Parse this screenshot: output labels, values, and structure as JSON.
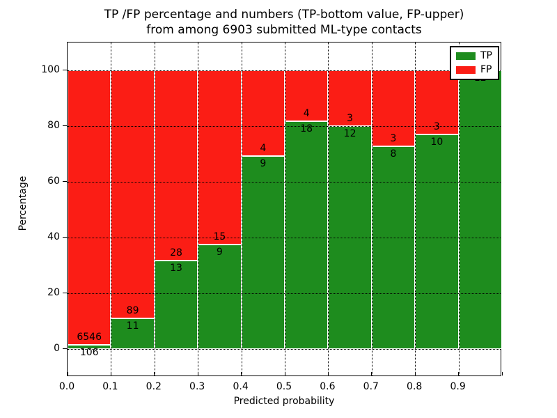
{
  "title": {
    "line1": "TP /FP percentage and numbers (TP-bottom value, FP-upper)",
    "line2": "from among 6903 submitted ML-type contacts"
  },
  "axes": {
    "xlabel": "Predicted probability",
    "ylabel": "Percentage",
    "x_tick_labels": [
      "0.0",
      "0.1",
      "0.2",
      "0.3",
      "0.4",
      "0.5",
      "0.6",
      "0.7",
      "0.8",
      "0.9"
    ],
    "y_tick_labels": [
      "0",
      "20",
      "40",
      "60",
      "80",
      "100"
    ],
    "y_tick_values": [
      0,
      20,
      40,
      60,
      80,
      100
    ]
  },
  "legend": {
    "items": [
      {
        "label": "TP",
        "color": "#1e8c1e"
      },
      {
        "label": "FP",
        "color": "#fb1d15"
      }
    ]
  },
  "colors": {
    "tp": "#1e8c1e",
    "fp": "#fb1d15",
    "grid": "#000000",
    "text": "#000000",
    "background": "#ffffff"
  },
  "chart_data": {
    "type": "bar",
    "stacked": true,
    "normalized": "each bin scaled to 100 percent; labels show raw counts (TP bottom, FP upper)",
    "title": "TP /FP percentage and numbers (TP-bottom value, FP-upper) from among 6903 submitted ML-type contacts",
    "xlabel": "Predicted probability",
    "ylabel": "Percentage",
    "xlim": [
      0.0,
      1.0
    ],
    "ylim": [
      -10,
      110
    ],
    "grid": true,
    "legend_position": "upper right",
    "bin_edges": [
      0.0,
      0.1,
      0.2,
      0.3,
      0.4,
      0.5,
      0.6,
      0.7,
      0.8,
      0.9,
      1.0
    ],
    "series": [
      {
        "name": "TP",
        "color": "#1e8c1e",
        "counts": [
          106,
          11,
          13,
          9,
          9,
          18,
          12,
          8,
          10,
          12
        ]
      },
      {
        "name": "FP",
        "color": "#fb1d15",
        "counts": [
          6546,
          89,
          28,
          15,
          4,
          4,
          3,
          3,
          3,
          0
        ]
      }
    ],
    "tp_percent_of_bin": [
      1.6,
      11.0,
      31.7,
      37.5,
      69.2,
      81.8,
      80.0,
      72.7,
      76.9,
      100.0
    ],
    "total_contacts": 6903
  }
}
